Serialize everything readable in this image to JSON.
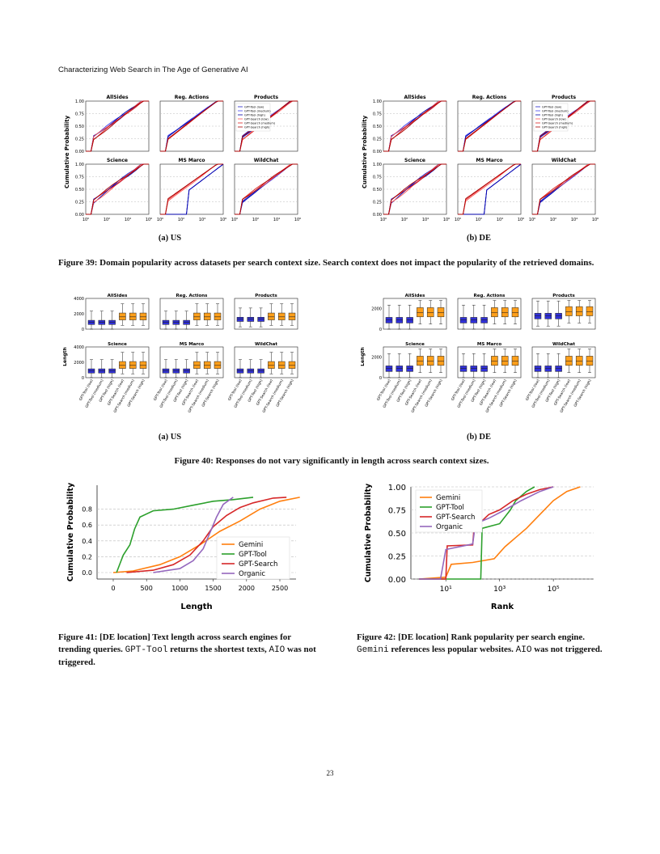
{
  "header": {
    "running_title": "Characterizing Web Search in The Age of Generative AI"
  },
  "fig39": {
    "caption": "Figure 39: Domain popularity across datasets per search context size. Search context does not impact the popularity of the retrieved domains.",
    "sub_a": "(a) US",
    "sub_b": "(b) DE",
    "ylabel": "Cumulative Probability",
    "panels": [
      "AllSides",
      "Reg. Actions",
      "Products",
      "Science",
      "MS Marco",
      "WildChat"
    ],
    "yticks": [
      "0.00",
      "0.25",
      "0.50",
      "0.75",
      "1.00"
    ],
    "xticks": [
      "10⁰",
      "10²",
      "10⁴",
      "10⁶"
    ],
    "legend": [
      "GPT-Tool (low)",
      "GPT-Tool (medium)",
      "GPT-Tool (high)",
      "GPT-Search (low)",
      "GPT-Search (medium)",
      "GPT-Search (high)"
    ]
  },
  "fig40": {
    "caption": "Figure 40: Responses do not vary significantly in length across search context sizes.",
    "sub_a": "(a) US",
    "sub_b": "(b) DE",
    "ylabel": "Length",
    "panels": [
      "AllSides",
      "Reg. Actions",
      "Products",
      "Science",
      "MS Marco",
      "WildChat"
    ],
    "yticks_us": [
      "0",
      "2000",
      "4000"
    ],
    "yticks_de": [
      "0",
      "2000"
    ],
    "xcats": [
      "GPT-Tool (low)",
      "GPT-Tool (medium)",
      "GPT-Tool (high)",
      "GPT-Search (low)",
      "GPT-Search (medium)",
      "GPT-Search (high)"
    ]
  },
  "fig41": {
    "caption_1": "Figure 41: [DE location] Text length across search engines for trending queries. ",
    "caption_code1": "GPT-Tool",
    "caption_2": " returns the shortest texts, ",
    "caption_code2": "AIO",
    "caption_3": " was not triggered.",
    "xlabel": "Length",
    "ylabel": "Cumulative Probability",
    "xticks": [
      "0",
      "500",
      "1000",
      "1500",
      "2000",
      "2500"
    ],
    "yticks": [
      "0.0",
      "0.2",
      "0.4",
      "0.6",
      "0.8"
    ],
    "legend": [
      "Gemini",
      "GPT-Tool",
      "GPT-Search",
      "Organic"
    ]
  },
  "fig42": {
    "caption_1": "Figure 42: [DE location] Rank popularity per search engine. ",
    "caption_code1": "Gemini",
    "caption_2": " references less popular websites. ",
    "caption_code2": "AIO",
    "caption_3": " was not triggered.",
    "xlabel": "Rank",
    "ylabel": "Cumulative Probability",
    "xticks": [
      "10¹",
      "10³",
      "10⁵"
    ],
    "yticks": [
      "0.00",
      "0.25",
      "0.50",
      "0.75",
      "1.00"
    ],
    "legend": [
      "Gemini",
      "GPT-Tool",
      "GPT-Search",
      "Organic"
    ]
  },
  "colors": {
    "gemini": "#ff7f0e",
    "gpttool": "#2ca02c",
    "gptsearch": "#d62728",
    "organic": "#9467bd",
    "blue": "#1f1fc8",
    "box_blue": "#3030d8",
    "box_orange": "#ff9f1a"
  },
  "page_number": "23"
}
